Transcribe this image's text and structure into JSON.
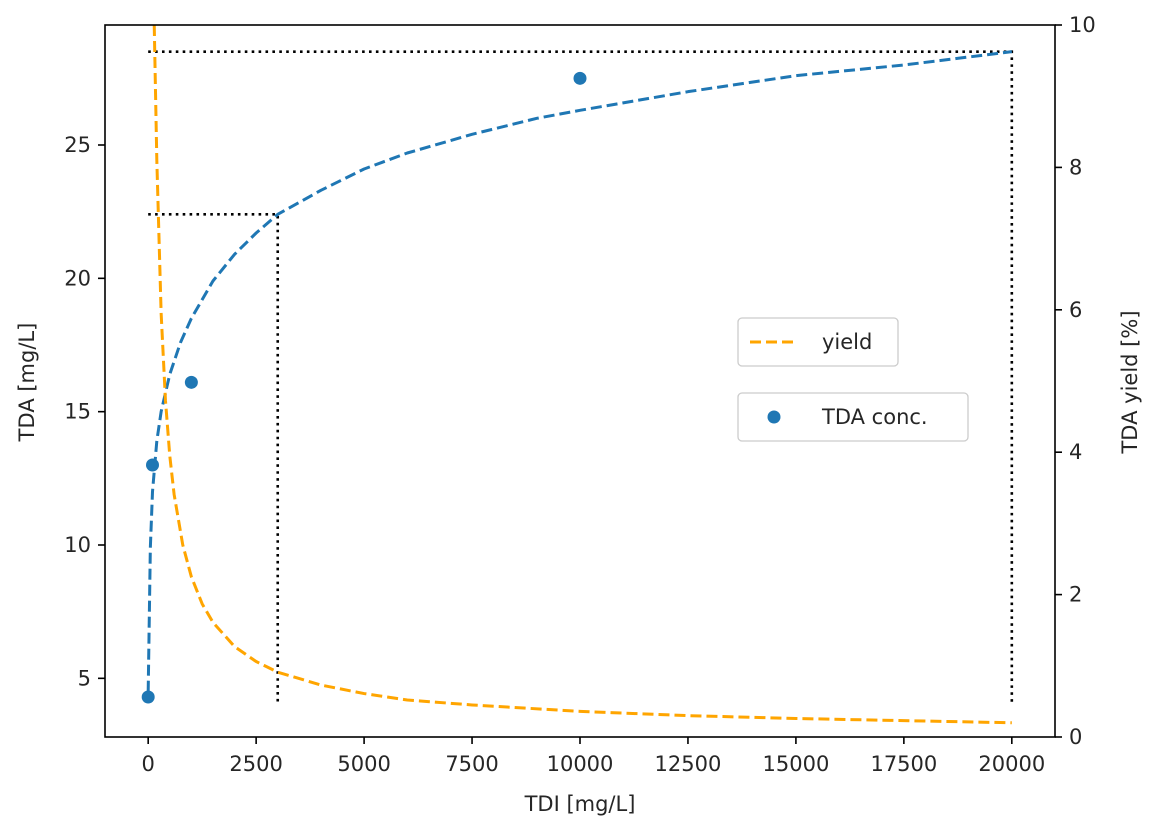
{
  "chart_data": {
    "type": "line",
    "title": "",
    "xlabel": "TDI [mg/L]",
    "ylabel": "TDA [mg/L]",
    "y2label": "TDA yield [%]",
    "xlim": [
      -1000,
      21000
    ],
    "ylim": [
      2.8,
      29.5
    ],
    "y2lim": [
      0,
      10
    ],
    "x_ticks": [
      0,
      2500,
      5000,
      7500,
      10000,
      12500,
      15000,
      17500,
      20000
    ],
    "y_ticks": [
      5,
      10,
      15,
      20,
      25
    ],
    "y2_ticks": [
      0,
      2,
      4,
      6,
      8,
      10
    ],
    "grid": false,
    "colors": {
      "conc": "#1f77b4",
      "yield": "#ffa500",
      "reference": "#000000"
    },
    "series": [
      {
        "name": "TDA conc.",
        "axis": "left",
        "style": "scatter",
        "color": "#1f77b4",
        "x": [
          0,
          100,
          1000,
          10000
        ],
        "y": [
          4.3,
          13.0,
          16.1,
          27.5
        ]
      },
      {
        "axis": "left",
        "style": "dashed-line",
        "color": "#1f77b4",
        "x": [
          0,
          50,
          100,
          200,
          300,
          500,
          750,
          1000,
          1500,
          2000,
          2500,
          3000,
          4000,
          5000,
          6000,
          7500,
          9000,
          10000,
          12500,
          15000,
          17500,
          20000
        ],
        "y": [
          4.5,
          9.9,
          12.0,
          13.9,
          15.0,
          16.4,
          17.6,
          18.5,
          19.9,
          20.9,
          21.7,
          22.4,
          23.3,
          24.1,
          24.7,
          25.4,
          26.0,
          26.3,
          27.0,
          27.6,
          28.0,
          28.5
        ]
      },
      {
        "name": "yield",
        "axis": "right",
        "style": "dashed-line",
        "color": "#ffa500",
        "x": [
          140,
          200,
          300,
          400,
          500,
          600,
          800,
          1000,
          1250,
          1500,
          2000,
          2500,
          3000,
          4000,
          5000,
          6000,
          7500,
          10000,
          12500,
          15000,
          17500,
          20000
        ],
        "y": [
          10.0,
          8.1,
          5.95,
          4.73,
          3.95,
          3.41,
          2.7,
          2.25,
          1.87,
          1.61,
          1.27,
          1.06,
          0.91,
          0.73,
          0.61,
          0.52,
          0.45,
          0.36,
          0.3,
          0.26,
          0.23,
          0.2
        ]
      }
    ],
    "reference_lines": [
      {
        "style": "dotted",
        "points": [
          [
            0,
            22.4
          ],
          [
            3000,
            22.4
          ],
          [
            3000,
            4.0
          ]
        ]
      },
      {
        "style": "dotted",
        "points": [
          [
            0,
            28.5
          ],
          [
            20000,
            28.5
          ],
          [
            20000,
            4.0
          ]
        ]
      }
    ],
    "legends": [
      {
        "entries": [
          "yield"
        ],
        "placement": "center-right"
      },
      {
        "entries": [
          "TDA conc."
        ],
        "placement": "center-right"
      }
    ]
  }
}
